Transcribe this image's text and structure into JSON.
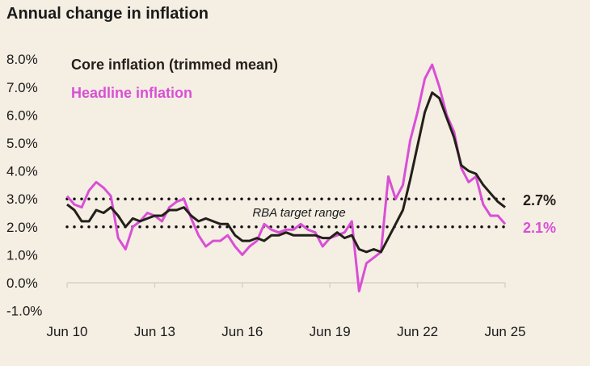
{
  "chart_data": {
    "type": "line",
    "title": "Annual change in inflation",
    "xlabel": "",
    "ylabel": "",
    "x_ticks": [
      "Jun 10",
      "Jun 13",
      "Jun 16",
      "Jun 19",
      "Jun 22",
      "Jun 25"
    ],
    "y_ticks": [
      "-1.0%",
      "0.0%",
      "1.0%",
      "2.0%",
      "3.0%",
      "4.0%",
      "5.0%",
      "6.0%",
      "7.0%",
      "8.0%"
    ],
    "ylim": [
      -1,
      8
    ],
    "x_range": [
      "Jun 10",
      "Jun 25"
    ],
    "x_frequency": "quarterly",
    "grid": false,
    "legend_placement": "top-left",
    "target_range": {
      "label": "RBA target range",
      "low": 2,
      "high": 3
    },
    "series": [
      {
        "name": "Core inflation (trimmed mean)",
        "color": "#231f1a",
        "end_label": "2.7%",
        "values": [
          2.8,
          2.6,
          2.2,
          2.2,
          2.6,
          2.5,
          2.7,
          2.4,
          2.0,
          2.3,
          2.2,
          2.3,
          2.4,
          2.4,
          2.6,
          2.6,
          2.7,
          2.4,
          2.2,
          2.3,
          2.2,
          2.1,
          2.1,
          1.7,
          1.5,
          1.5,
          1.6,
          1.5,
          1.7,
          1.7,
          1.8,
          1.7,
          1.7,
          1.7,
          1.7,
          1.6,
          1.6,
          1.8,
          1.6,
          1.7,
          1.2,
          1.1,
          1.2,
          1.1,
          1.6,
          2.1,
          2.6,
          3.7,
          4.9,
          6.1,
          6.8,
          6.6,
          5.9,
          5.2,
          4.2,
          4.0,
          3.9,
          3.5,
          3.2,
          2.9,
          2.7
        ]
      },
      {
        "name": "Headline inflation",
        "color": "#d94fd6",
        "end_label": "2.1%",
        "values": [
          3.1,
          2.8,
          2.7,
          3.3,
          3.6,
          3.4,
          3.1,
          1.6,
          1.2,
          2.0,
          2.2,
          2.5,
          2.4,
          2.2,
          2.7,
          2.9,
          3.0,
          2.3,
          1.7,
          1.3,
          1.5,
          1.5,
          1.7,
          1.3,
          1.0,
          1.3,
          1.5,
          2.1,
          1.9,
          1.8,
          1.9,
          1.9,
          2.1,
          1.9,
          1.8,
          1.3,
          1.6,
          1.7,
          1.8,
          2.2,
          -0.3,
          0.7,
          0.9,
          1.1,
          3.8,
          3.0,
          3.5,
          5.1,
          6.1,
          7.3,
          7.8,
          7.0,
          6.0,
          5.4,
          4.1,
          3.6,
          3.8,
          2.8,
          2.4,
          2.4,
          2.1
        ]
      }
    ]
  }
}
